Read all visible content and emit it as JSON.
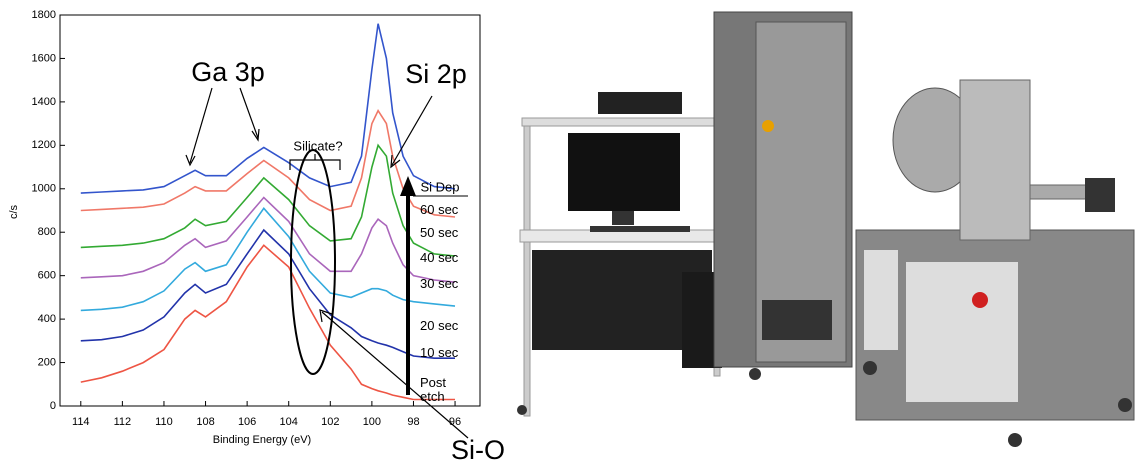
{
  "chart_data": {
    "type": "line",
    "x_label": "Binding Energy (eV)",
    "y_label": "c/s",
    "annotations": [
      "Ga 3p",
      "Si 2p",
      "Silicate?",
      "Si-O",
      "Si Dep"
    ],
    "x": [
      114,
      113,
      112,
      111,
      110,
      109,
      108.5,
      108,
      107,
      106,
      105.2,
      104,
      103,
      102,
      101,
      100.5,
      100,
      99.7,
      99.3,
      99,
      98.5,
      98,
      97,
      96
    ],
    "series": [
      {
        "name": "60 sec",
        "color": "#3355cc",
        "values": [
          980,
          985,
          990,
          995,
          1010,
          1060,
          1085,
          1060,
          1060,
          1140,
          1190,
          1120,
          1050,
          1010,
          1030,
          1150,
          1550,
          1760,
          1600,
          1350,
          1150,
          1060,
          1010,
          1000
        ]
      },
      {
        "name": "50 sec",
        "color": "#f07868",
        "values": [
          900,
          905,
          910,
          915,
          930,
          980,
          1010,
          990,
          990,
          1070,
          1130,
          1050,
          950,
          900,
          920,
          1050,
          1300,
          1360,
          1300,
          1150,
          1000,
          920,
          880,
          870
        ]
      },
      {
        "name": "40 sec",
        "color": "#33aa33",
        "values": [
          730,
          735,
          740,
          750,
          770,
          820,
          860,
          830,
          850,
          960,
          1050,
          950,
          830,
          760,
          770,
          870,
          1100,
          1200,
          1150,
          980,
          830,
          750,
          700,
          690
        ]
      },
      {
        "name": "30 sec",
        "color": "#aa66bb",
        "values": [
          590,
          595,
          600,
          620,
          660,
          740,
          770,
          730,
          760,
          870,
          960,
          850,
          700,
          620,
          620,
          700,
          820,
          860,
          830,
          750,
          650,
          600,
          580,
          570
        ]
      },
      {
        "name": "20 sec",
        "color": "#33aadd",
        "values": [
          440,
          445,
          455,
          480,
          530,
          630,
          660,
          620,
          650,
          800,
          910,
          780,
          620,
          520,
          500,
          520,
          540,
          540,
          530,
          510,
          490,
          480,
          470,
          460
        ]
      },
      {
        "name": "10 sec",
        "color": "#2233aa",
        "values": [
          300,
          305,
          320,
          350,
          410,
          520,
          560,
          520,
          560,
          700,
          810,
          700,
          540,
          420,
          360,
          320,
          300,
          290,
          280,
          270,
          250,
          230,
          220,
          220
        ]
      },
      {
        "name": "Post etch",
        "color": "#ee5544",
        "values": [
          110,
          130,
          160,
          200,
          260,
          400,
          440,
          410,
          480,
          640,
          740,
          640,
          450,
          280,
          170,
          100,
          80,
          70,
          60,
          50,
          40,
          30,
          30,
          30
        ]
      }
    ],
    "xlim": [
      115,
      94.8
    ],
    "xticks": [
      114,
      112,
      110,
      108,
      106,
      104,
      102,
      100,
      98,
      96
    ],
    "ylim": [
      0,
      1800
    ],
    "yticks": [
      0,
      200,
      400,
      600,
      800,
      1000,
      1200,
      1400,
      1600,
      1800
    ]
  }
}
